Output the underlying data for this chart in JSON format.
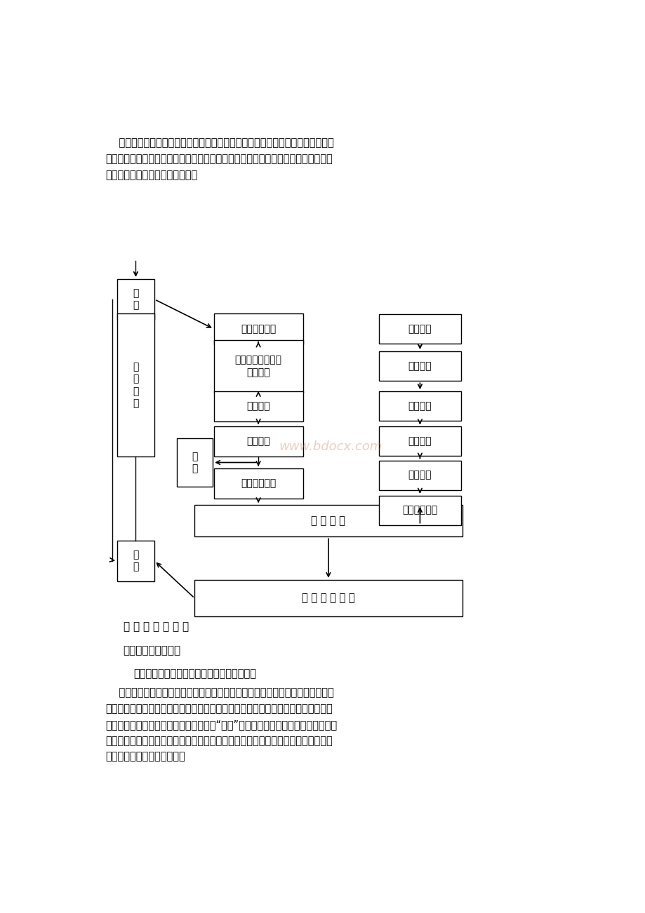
{
  "bg_color": "#ffffff",
  "text_color": "#000000",
  "para1_line1": "    本工程监理的主要方法是动态控制法：即事前预测、事中控制、事后检查。以事",
  "para1_line2": "前预测为先，事中控制同时加强监测和信息反馈、调整；主动控制为主，并定期和不",
  "para1_line3": "定期进行事后检查，见下页框图。",
  "caption": "动 态 控 制 流 程 图",
  "section_title": "三、监理阶段、范围",
  "sub1": "（一）监理阶段：工程施工及保修阶段监理。",
  "sub2_line1": "    （二）监理范围：对本工程的施工和保修阶段的监理，主要对本项目的平基土石",
  "sub2_line2": "方、厂区土建、排水管网、设备安装、边坡治理等工程的施工进行监理。在监理过程",
  "sub2_line3": "中，对建设过程中实施投资、进度、质量“三大”目标的控制、合同管理、信息管理和",
  "sub2_line4": "组织协调。严格执行国家工程建设监理制度，确保工程顺利进行，如期建成和交付使",
  "sub2_line5": "用，并实施保修阶段的监理。",
  "watermark": "www.bdocx.com",
  "box_shuru": "输\n入",
  "box_gongcheng": "工\n程\n实\n施",
  "box_zhengchang": "正\n常",
  "box_shuchu": "输\n出",
  "box_collect": "收集实际情况",
  "box_compare": "将计划目标与实际\n情况对比",
  "box_confirm": "确认偏离",
  "box_analyze": "分析原因",
  "box_correct_c": "制定纠偏措施",
  "box_shishi": "实 施 纠 偏",
  "box_dadao": "达 到 预 定 目 标",
  "box_r1": "调查研究",
  "box_r2": "目标论证",
  "box_r3": "风险分析",
  "box_r4": "预测偏离",
  "box_r5": "研究对策",
  "box_r6": "制定纠偏措施"
}
